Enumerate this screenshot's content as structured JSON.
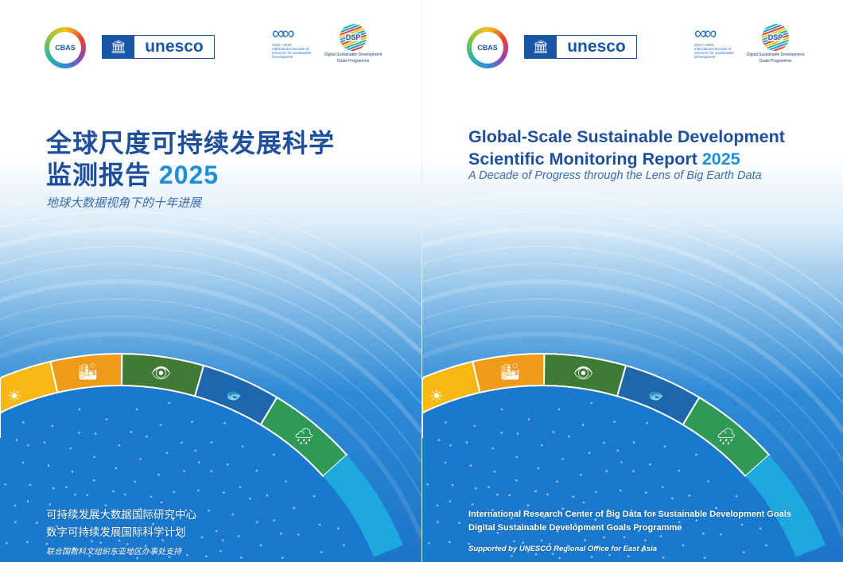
{
  "logos": {
    "cbas": "CBAS",
    "unesco": "unesco",
    "decade_lines": [
      "2024 • 2033",
      "International Decade of",
      "Sciences for Sustainable",
      "Development"
    ],
    "dsp": "DSP",
    "dsp_lines": [
      "Digital Sustainable Development",
      "Goals Programme"
    ]
  },
  "cn": {
    "title_line1": "全球尺度可持续发展科学",
    "title_line2": "监测报告",
    "year": "2025",
    "subtitle": "地球大数据视角下的十年进展",
    "org1": "可持续发展大数据国际研究中心",
    "org2": "数字可持续发展国际科学计划",
    "support": "联合国教科文组织东亚地区办事处支持"
  },
  "en": {
    "title_line1": "Global-Scale Sustainable Development",
    "title_line2": "Scientific Monitoring Report",
    "year": "2025",
    "subtitle": "A Decade of Progress through the Lens of Big Earth Data",
    "org1": "International Research Center of Big Data for Sustainable Development Goals",
    "org2": "Digital Sustainable Development Goals Programme",
    "support": "Supported by UNESCO Regional Office for East Asia"
  },
  "ring_segments": [
    {
      "color": "#f6b914",
      "icon": "sun-icon"
    },
    {
      "color": "#f09a1a",
      "icon": "city-icon"
    },
    {
      "color": "#3f7a36",
      "icon": "eye-globe-icon"
    },
    {
      "color": "#1c67ae",
      "icon": "fish-icon"
    },
    {
      "color": "#2f9a58",
      "icon": "cloud-rain-icon"
    }
  ]
}
